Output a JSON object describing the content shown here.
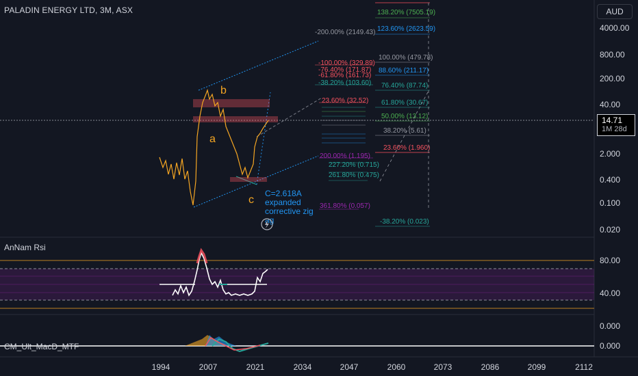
{
  "header": {
    "title": "PALADIN ENERGY LTD, 3M, ASX"
  },
  "currency_button": {
    "label": "AUD"
  },
  "price_tag": {
    "price": "14.71",
    "countdown": "1M 28d"
  },
  "price_axis": [
    "4000.00",
    "800.00",
    "200.00",
    "40.00",
    "2.000",
    "0.400",
    "0.100",
    "0.020"
  ],
  "rsi": {
    "title": "AnNam Rsi",
    "axis": [
      "80.00",
      "40.00"
    ]
  },
  "macd": {
    "title": "CM_Ult_MacD_MTF",
    "axis": [
      "0.000",
      "0.000"
    ]
  },
  "time_axis": [
    "1994",
    "2007",
    "2021",
    "2034",
    "2047",
    "2060",
    "2073",
    "2086",
    "2099",
    "2112"
  ],
  "wave_labels": {
    "a": "a",
    "b": "b",
    "c": "c"
  },
  "annotation": {
    "line1": "C=2.618A",
    "line2": "expanded",
    "line3": "corrective zig",
    "line4": "ag"
  },
  "fib_right": [
    {
      "label": "138.20% (7505.19)",
      "color": "#4caf50"
    },
    {
      "label": "123.60% (2623.59)",
      "color": "#2196f3"
    },
    {
      "label": "100.00% (479.78)",
      "color": "#9598a1"
    },
    {
      "label": "88.60% (211.17)",
      "color": "#2196f3"
    },
    {
      "label": "76.40% (87.74)",
      "color": "#26a69a"
    },
    {
      "label": "61.80% (30.67)",
      "color": "#26a69a"
    },
    {
      "label": "50.00% (13.12)",
      "color": "#4caf50"
    },
    {
      "label": "38.20% (5.61)",
      "color": "#9598a1"
    },
    {
      "label": "23.60% (1.960)",
      "color": "#f7525f"
    },
    {
      "label": "-38.20% (0.023)",
      "color": "#26a69a"
    }
  ],
  "fib_left": [
    {
      "label": "-200.00% (2149.43)",
      "color": "#9598a1"
    },
    {
      "label": "-100.00% (329.89)",
      "color": "#f7525f"
    },
    {
      "label": "-76.40% (171.87)",
      "color": "#f7525f"
    },
    {
      "label": "-61.80% (161.73)",
      "color": "#f7525f"
    },
    {
      "label": "-38.20% (103.60)",
      "color": "#26a69a"
    },
    {
      "label": "23.60% (32.52)",
      "color": "#f7525f"
    },
    {
      "label": "200.00% (1.195)",
      "color": "#9c27b0"
    },
    {
      "label": "227.20% (0.715)",
      "color": "#26a69a"
    },
    {
      "label": "261.80% (0.475)",
      "color": "#26a69a"
    },
    {
      "label": "361.80% (0.057)",
      "color": "#9c27b0"
    }
  ],
  "colors": {
    "background": "#131722",
    "candle_up": "#f5a623",
    "rsi_line": "#ffffff",
    "channel": "#2196f3"
  }
}
